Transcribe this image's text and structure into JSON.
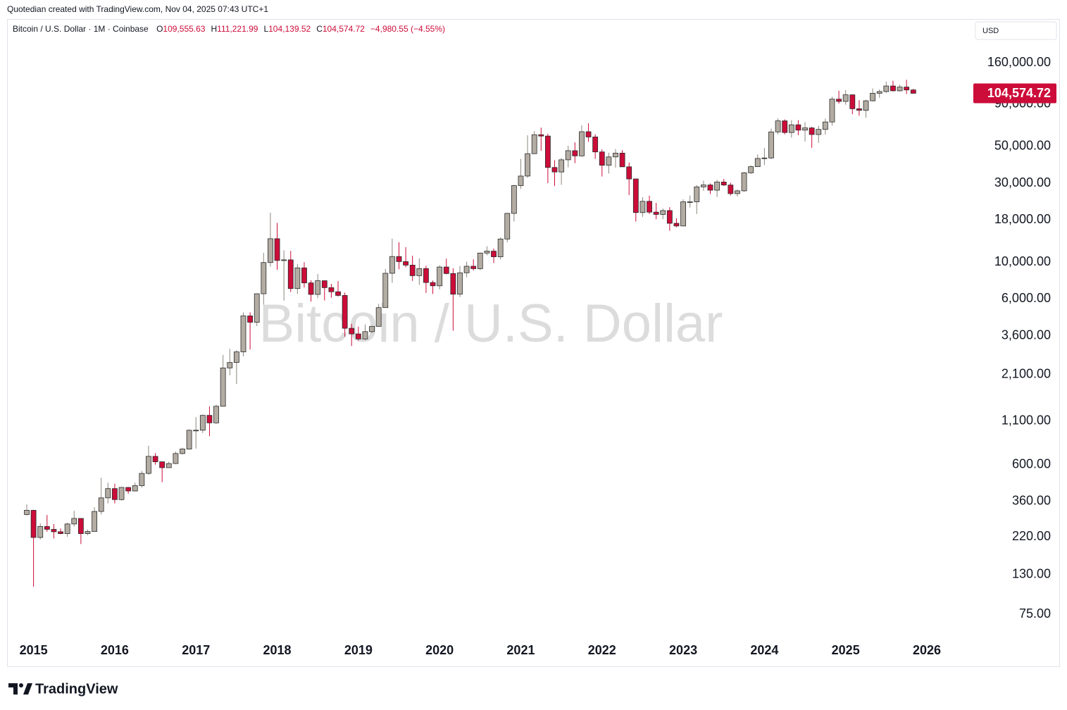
{
  "chart_data": {
    "type": "candlestick",
    "credit": "Quotedian created with TradingView.com, Nov 04, 2025 07:43 UTC+1",
    "legend": {
      "symbol": "Bitcoin / U.S. Dollar · 1M · Coinbase",
      "ohlc": [
        {
          "key": "O",
          "value": "109,555.63"
        },
        {
          "key": "H",
          "value": "111,221.99"
        },
        {
          "key": "L",
          "value": "104,139.52"
        },
        {
          "key": "C",
          "value": "104,574.72"
        }
      ],
      "change": "−4,980.55 (−4.55%)"
    },
    "watermark": "Bitcoin / U.S. Dollar",
    "currency": "USD",
    "brand": "TradingView",
    "price_label": {
      "value": 104574.72,
      "label": "104,574.72"
    },
    "log_scale": true,
    "up_color": "#b3aca3",
    "down_color": "#cc0c39",
    "border_color": "#2b2b2b",
    "ylim": [
      54.32,
      285090
    ],
    "yticks": [
      {
        "value": 160000,
        "label": "160,000.00"
      },
      {
        "value": 90000,
        "label": "90,000.00"
      },
      {
        "value": 50000,
        "label": "50,000.00"
      },
      {
        "value": 30000,
        "label": "30,000.00"
      },
      {
        "value": 18000,
        "label": "18,000.00"
      },
      {
        "value": 10000,
        "label": "10,000.00"
      },
      {
        "value": 6000,
        "label": "6,000.00"
      },
      {
        "value": 3600,
        "label": "3,600.00"
      },
      {
        "value": 2100,
        "label": "2,100.00"
      },
      {
        "value": 1100,
        "label": "1,100.00"
      },
      {
        "value": 600,
        "label": "600.00"
      },
      {
        "value": 360,
        "label": "360.00"
      },
      {
        "value": 220,
        "label": "220.00"
      },
      {
        "value": 130,
        "label": "130.00"
      },
      {
        "value": 75,
        "label": "75.00"
      }
    ],
    "categories": [
      null,
      "2015",
      null,
      null,
      null,
      null,
      null,
      null,
      null,
      null,
      null,
      null,
      null,
      "2016",
      null,
      null,
      null,
      null,
      null,
      null,
      null,
      null,
      null,
      null,
      null,
      "2017",
      null,
      null,
      null,
      null,
      null,
      null,
      null,
      null,
      null,
      null,
      null,
      "2018",
      null,
      null,
      null,
      null,
      null,
      null,
      null,
      null,
      null,
      null,
      null,
      "2019",
      null,
      null,
      null,
      null,
      null,
      null,
      null,
      null,
      null,
      null,
      null,
      "2020",
      null,
      null,
      null,
      null,
      null,
      null,
      null,
      null,
      null,
      null,
      null,
      "2021",
      null,
      null,
      null,
      null,
      null,
      null,
      null,
      null,
      null,
      null,
      null,
      "2022",
      null,
      null,
      null,
      null,
      null,
      null,
      null,
      null,
      null,
      null,
      null,
      "2023",
      null,
      null,
      null,
      null,
      null,
      null,
      null,
      null,
      null,
      null,
      null,
      "2024",
      null,
      null,
      null,
      null,
      null,
      null,
      null,
      null,
      null,
      null,
      null,
      "2025",
      null,
      null,
      null,
      null,
      null,
      null,
      null,
      null,
      null,
      null,
      null,
      "2026"
    ],
    "open": [
      300,
      318,
      218,
      254,
      244,
      236,
      230,
      263,
      284,
      230,
      237,
      313,
      378,
      430,
      369,
      437,
      416,
      448,
      531,
      673,
      624,
      575,
      609,
      700,
      745,
      967,
      968,
      1190,
      1072,
      1350,
      2300,
      2480,
      2875,
      4740,
      4340,
      6450,
      9950,
      13860,
      10240,
      10330,
      6930,
      9240,
      7500,
      6390,
      7730,
      7020,
      6630,
      6300,
      3990,
      3690,
      3440,
      3810,
      4100,
      5320,
      8570,
      10820,
      10080,
      9600,
      8290,
      9150,
      7540,
      7200,
      9350,
      8540,
      6410,
      8630,
      9450,
      9140,
      11350,
      11660,
      10780,
      13800,
      19700,
      28990,
      33110,
      45180,
      58800,
      57720,
      37300,
      35040,
      41490,
      47100,
      43820,
      61300,
      57000,
      46300,
      38480,
      43190,
      45530,
      37640,
      31800,
      19930,
      23300,
      20050,
      19420,
      20490,
      17170,
      16540,
      23140,
      23150,
      28480,
      29250,
      27200,
      30470,
      29230,
      25930,
      26960,
      34650,
      37720,
      42280,
      42580,
      61130,
      71290,
      60620,
      67500,
      62680,
      64630,
      58970,
      63300,
      70200,
      96400,
      93400,
      102400,
      84350,
      82550,
      94200,
      104600,
      107150,
      115750,
      108250,
      114050,
      109555.63,
      null,
      null
    ],
    "high": [
      345,
      320,
      265,
      298,
      263,
      247,
      268,
      316,
      285,
      244,
      332,
      500,
      466,
      460,
      440,
      440,
      467,
      550,
      780,
      704,
      627,
      625,
      720,
      760,
      980,
      1160,
      1200,
      1350,
      1380,
      2760,
      3000,
      2950,
      4980,
      4980,
      6470,
      11400,
      19890,
      17250,
      11800,
      11700,
      9760,
      10000,
      7780,
      8500,
      7760,
      7400,
      7680,
      6550,
      4240,
      4080,
      4210,
      4110,
      5600,
      9100,
      13880,
      13200,
      12330,
      10950,
      10540,
      9520,
      7750,
      9580,
      10500,
      9190,
      9470,
      10070,
      10400,
      11450,
      12480,
      12080,
      14100,
      19900,
      29300,
      42000,
      58350,
      61800,
      64900,
      59600,
      41300,
      42600,
      50500,
      52900,
      67000,
      69000,
      59100,
      47990,
      45800,
      48200,
      47450,
      40000,
      31950,
      24670,
      25200,
      22800,
      21090,
      21480,
      18400,
      23950,
      25250,
      29200,
      31050,
      29840,
      31430,
      31800,
      30200,
      27500,
      35000,
      38420,
      44700,
      48970,
      64000,
      73800,
      72800,
      71980,
      72000,
      70000,
      65600,
      66500,
      73600,
      99600,
      108300,
      109350,
      102750,
      95000,
      95750,
      111950,
      110500,
      123200,
      124450,
      117900,
      126200,
      111221.99,
      null,
      null
    ],
    "low": [
      295,
      110,
      212,
      236,
      215,
      228,
      220,
      254,
      199,
      225,
      236,
      300,
      350,
      350,
      364,
      400,
      414,
      436,
      520,
      600,
      470,
      575,
      605,
      690,
      740,
      750,
      930,
      890,
      1060,
      1350,
      2080,
      1840,
      2700,
      2970,
      4110,
      5550,
      9400,
      9000,
      5870,
      6600,
      6430,
      7030,
      5780,
      6070,
      5880,
      6100,
      6200,
      3550,
      3120,
      3360,
      3380,
      3730,
      4070,
      5320,
      7500,
      9060,
      9330,
      7710,
      7300,
      6520,
      6430,
      6850,
      8450,
      3860,
      6160,
      8110,
      8900,
      8960,
      10990,
      9880,
      10380,
      13200,
      17600,
      27700,
      32300,
      45000,
      47000,
      30000,
      28800,
      29300,
      37330,
      39600,
      43300,
      53250,
      42000,
      32900,
      34300,
      37200,
      37700,
      25400,
      17600,
      18780,
      19520,
      18150,
      18190,
      15480,
      16260,
      16500,
      21400,
      19550,
      26950,
      25800,
      24750,
      28850,
      25300,
      24900,
      26550,
      34100,
      37600,
      38550,
      41880,
      59000,
      59100,
      56500,
      58400,
      53500,
      49000,
      52550,
      58900,
      66800,
      90500,
      89160,
      78200,
      76600,
      74400,
      93350,
      98200,
      105100,
      107350,
      107250,
      103500,
      104139.52,
      null,
      null
    ],
    "close": [
      318,
      218,
      254,
      244,
      236,
      230,
      263,
      284,
      230,
      237,
      313,
      378,
      430,
      369,
      437,
      416,
      448,
      531,
      673,
      624,
      575,
      609,
      700,
      745,
      967,
      968,
      1190,
      1072,
      1350,
      2300,
      2480,
      2875,
      4740,
      4340,
      6450,
      9950,
      13860,
      10240,
      10330,
      6930,
      9240,
      7500,
      6390,
      7730,
      7020,
      6630,
      6300,
      3990,
      3690,
      3440,
      3810,
      4100,
      5320,
      8570,
      10820,
      10080,
      9600,
      8290,
      9150,
      7540,
      7200,
      9350,
      8540,
      6410,
      8630,
      9450,
      9140,
      11350,
      11660,
      10780,
      13800,
      19700,
      28990,
      33110,
      45180,
      58800,
      57720,
      37300,
      35040,
      41490,
      47100,
      43820,
      61300,
      57000,
      46300,
      38480,
      43190,
      45530,
      37640,
      31800,
      19930,
      23300,
      20050,
      19420,
      20490,
      17170,
      16540,
      23140,
      23150,
      28480,
      29250,
      27200,
      30470,
      29230,
      25930,
      26960,
      34650,
      37720,
      42280,
      42580,
      61130,
      71290,
      60620,
      67500,
      62680,
      64630,
      58970,
      63300,
      70200,
      96400,
      93400,
      102400,
      84350,
      82550,
      94200,
      104600,
      107150,
      115750,
      108250,
      114050,
      109555.63,
      104574.72,
      null,
      null
    ]
  }
}
